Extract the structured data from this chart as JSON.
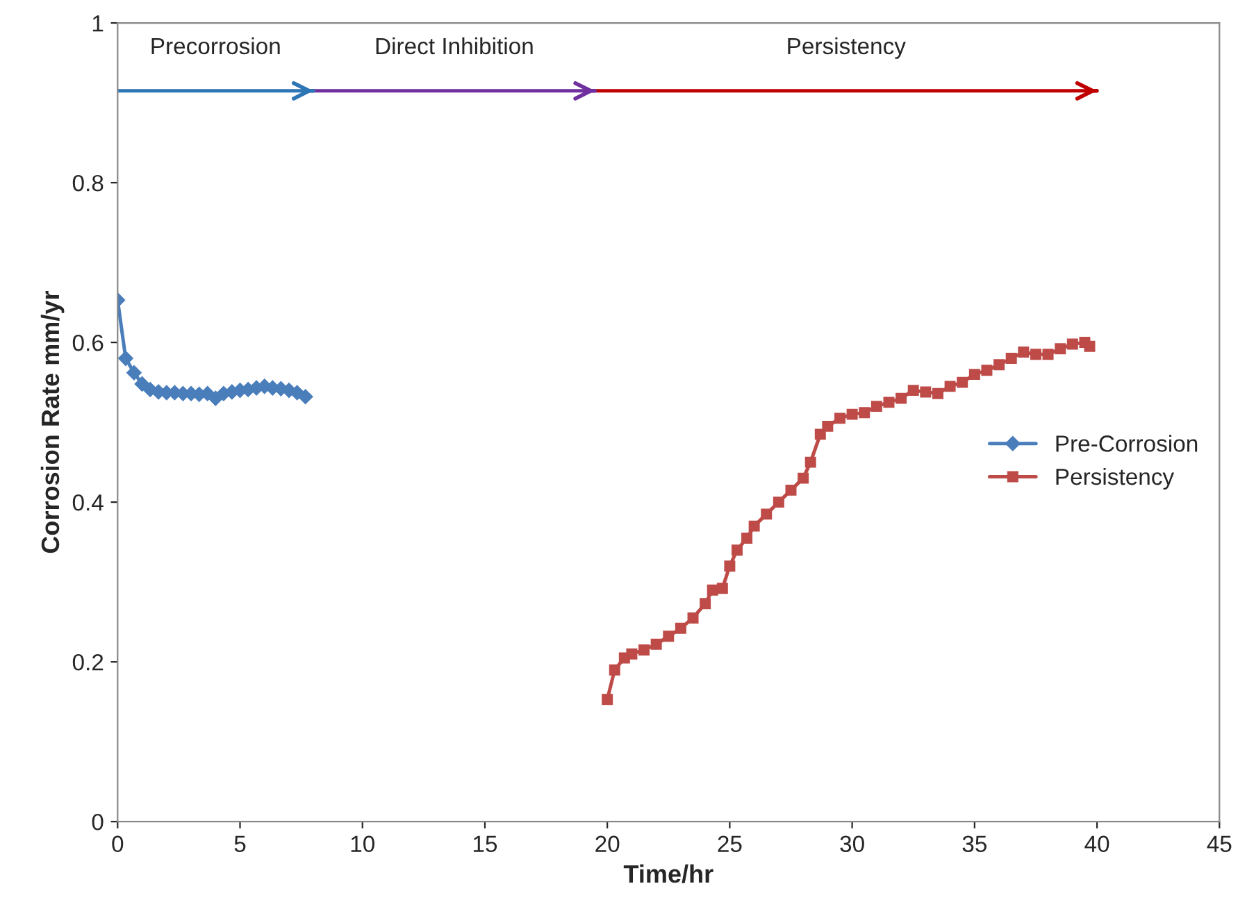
{
  "chart_data": {
    "type": "line",
    "xlabel": "Time/hr",
    "ylabel": "Corrosion Rate mm/yr",
    "xlim": [
      0,
      45
    ],
    "xticks": [
      0,
      5,
      10,
      15,
      20,
      25,
      30,
      35,
      40,
      45
    ],
    "ylim": [
      0,
      1
    ],
    "yticks": [
      0,
      0.2,
      0.4,
      0.6,
      0.8,
      1
    ],
    "grid": false,
    "legend": "right",
    "series": [
      {
        "name": "Pre-Corrosion",
        "color": "#4a7ebb",
        "marker": "diamond",
        "x": [
          0,
          0.33,
          0.67,
          1.0,
          1.33,
          1.67,
          2.0,
          2.33,
          2.67,
          3.0,
          3.33,
          3.67,
          4.0,
          4.33,
          4.67,
          5.0,
          5.33,
          5.67,
          6.0,
          6.33,
          6.67,
          7.0,
          7.33,
          7.67
        ],
        "values": [
          0.653,
          0.58,
          0.562,
          0.548,
          0.541,
          0.538,
          0.537,
          0.537,
          0.536,
          0.536,
          0.535,
          0.536,
          0.53,
          0.536,
          0.538,
          0.54,
          0.541,
          0.543,
          0.545,
          0.543,
          0.542,
          0.54,
          0.537,
          0.532
        ]
      },
      {
        "name": "Persistency",
        "color": "#be4b48",
        "marker": "square",
        "x": [
          20,
          20.3,
          20.7,
          21,
          21.5,
          22,
          22.5,
          23,
          23.5,
          24,
          24.3,
          24.7,
          25,
          25.3,
          25.7,
          26,
          26.5,
          27,
          27.5,
          28,
          28.3,
          28.7,
          29,
          29.5,
          30,
          30.5,
          31,
          31.5,
          32,
          32.5,
          33,
          33.5,
          34,
          34.5,
          35,
          35.5,
          36,
          36.5,
          37,
          37.5,
          38,
          38.5,
          39,
          39.5,
          39.7
        ],
        "values": [
          0.153,
          0.19,
          0.205,
          0.21,
          0.215,
          0.222,
          0.232,
          0.242,
          0.255,
          0.273,
          0.29,
          0.292,
          0.32,
          0.34,
          0.355,
          0.37,
          0.385,
          0.4,
          0.415,
          0.43,
          0.45,
          0.485,
          0.495,
          0.505,
          0.51,
          0.512,
          0.52,
          0.525,
          0.53,
          0.54,
          0.538,
          0.536,
          0.545,
          0.55,
          0.56,
          0.565,
          0.572,
          0.58,
          0.588,
          0.585,
          0.585,
          0.592,
          0.598,
          0.6,
          0.595
        ]
      },
      {
        "type": "line",
        "color": "#2e75b6",
        "marker": "none",
        "x": [
          0,
          8
        ],
        "values": [
          0.915,
          0.915
        ]
      },
      {
        "type": "line",
        "color": "#7030a0",
        "marker": "none",
        "x": [
          8,
          19.5
        ],
        "values": [
          0.915,
          0.915
        ]
      },
      {
        "type": "line",
        "color": "#c00000",
        "marker": "none",
        "x": [
          19.5,
          40
        ],
        "values": [
          0.915,
          0.915
        ]
      }
    ],
    "annotations": [
      "Precorrosion",
      "Direct Inhibition",
      "Persistency"
    ]
  }
}
